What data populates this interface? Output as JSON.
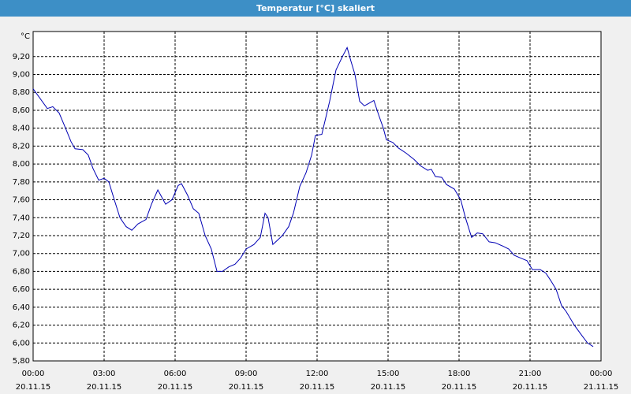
{
  "chart_data": {
    "type": "line",
    "title": "Temperatur [°C] skaliert",
    "y_unit": "°C",
    "x": [
      0,
      0.6,
      0.83,
      1.1,
      1.37,
      1.6,
      1.77,
      2.1,
      2.33,
      2.53,
      2.77,
      3.0,
      3.2,
      3.43,
      3.67,
      3.93,
      4.17,
      4.43,
      4.77,
      5.0,
      5.27,
      5.6,
      5.87,
      6.13,
      6.27,
      6.53,
      6.77,
      7.0,
      7.27,
      7.53,
      7.77,
      8.0,
      8.27,
      8.53,
      8.77,
      9.0,
      9.33,
      9.6,
      9.8,
      9.93,
      10.13,
      10.33,
      10.53,
      10.8,
      11.0,
      11.27,
      11.53,
      11.77,
      11.93,
      12.2,
      12.53,
      12.8,
      13.07,
      13.27,
      13.43,
      13.6,
      13.8,
      14.0,
      14.2,
      14.4,
      14.6,
      14.8,
      14.93,
      15.2,
      15.43,
      15.77,
      16.1,
      16.37,
      16.67,
      16.83,
      17.0,
      17.27,
      17.47,
      17.8,
      18.07,
      18.27,
      18.53,
      18.77,
      19.0,
      19.27,
      19.53,
      19.87,
      20.1,
      20.33,
      20.6,
      20.87,
      21.1,
      21.43,
      21.67,
      21.87,
      22.1,
      22.33,
      22.53,
      22.87,
      23.2,
      23.43,
      23.67
    ],
    "series": [
      {
        "name": "Temperatur",
        "color": "#0000b4",
        "values": [
          8.84,
          8.62,
          8.64,
          8.57,
          8.4,
          8.25,
          8.17,
          8.16,
          8.1,
          7.95,
          7.82,
          7.84,
          7.8,
          7.6,
          7.4,
          7.3,
          7.26,
          7.33,
          7.38,
          7.55,
          7.71,
          7.55,
          7.6,
          7.76,
          7.78,
          7.65,
          7.5,
          7.45,
          7.2,
          7.05,
          6.8,
          6.8,
          6.85,
          6.88,
          6.95,
          7.05,
          7.1,
          7.18,
          7.45,
          7.4,
          7.1,
          7.15,
          7.2,
          7.3,
          7.45,
          7.75,
          7.9,
          8.1,
          8.32,
          8.33,
          8.7,
          9.05,
          9.2,
          9.3,
          9.15,
          9.0,
          8.7,
          8.65,
          8.68,
          8.71,
          8.55,
          8.4,
          8.27,
          8.24,
          8.18,
          8.12,
          8.05,
          7.98,
          7.93,
          7.94,
          7.86,
          7.85,
          7.77,
          7.72,
          7.6,
          7.4,
          7.18,
          7.23,
          7.22,
          7.13,
          7.12,
          7.08,
          7.05,
          6.98,
          6.95,
          6.92,
          6.82,
          6.82,
          6.78,
          6.7,
          6.6,
          6.42,
          6.35,
          6.2,
          6.08,
          6.0,
          5.96
        ]
      }
    ],
    "xlim": [
      0,
      24
    ],
    "ylim": [
      5.8,
      9.48
    ],
    "grid": true,
    "xticks": [
      {
        "value": 0,
        "label": "00:00",
        "date": "20.11.15"
      },
      {
        "value": 3,
        "label": "03:00",
        "date": "20.11.15"
      },
      {
        "value": 6,
        "label": "06:00",
        "date": "20.11.15"
      },
      {
        "value": 9,
        "label": "09:00",
        "date": "20.11.15"
      },
      {
        "value": 12,
        "label": "12:00",
        "date": "20.11.15"
      },
      {
        "value": 15,
        "label": "15:00",
        "date": "20.11.15"
      },
      {
        "value": 18,
        "label": "18:00",
        "date": "20.11.15"
      },
      {
        "value": 21,
        "label": "21:00",
        "date": "20.11.15"
      },
      {
        "value": 24,
        "label": "00:00",
        "date": "21.11.15"
      }
    ],
    "yticks": [
      {
        "value": 5.8,
        "label": "5,80"
      },
      {
        "value": 6.0,
        "label": "6,00"
      },
      {
        "value": 6.2,
        "label": "6,20"
      },
      {
        "value": 6.4,
        "label": "6,40"
      },
      {
        "value": 6.6,
        "label": "6,60"
      },
      {
        "value": 6.8,
        "label": "6,80"
      },
      {
        "value": 7.0,
        "label": "7,00"
      },
      {
        "value": 7.2,
        "label": "7,20"
      },
      {
        "value": 7.4,
        "label": "7,40"
      },
      {
        "value": 7.6,
        "label": "7,60"
      },
      {
        "value": 7.8,
        "label": "7,80"
      },
      {
        "value": 8.0,
        "label": "8,00"
      },
      {
        "value": 8.2,
        "label": "8,20"
      },
      {
        "value": 8.4,
        "label": "8,40"
      },
      {
        "value": 8.6,
        "label": "8,60"
      },
      {
        "value": 8.8,
        "label": "8,80"
      },
      {
        "value": 9.0,
        "label": "9,00"
      },
      {
        "value": 9.2,
        "label": "9,20"
      }
    ]
  }
}
